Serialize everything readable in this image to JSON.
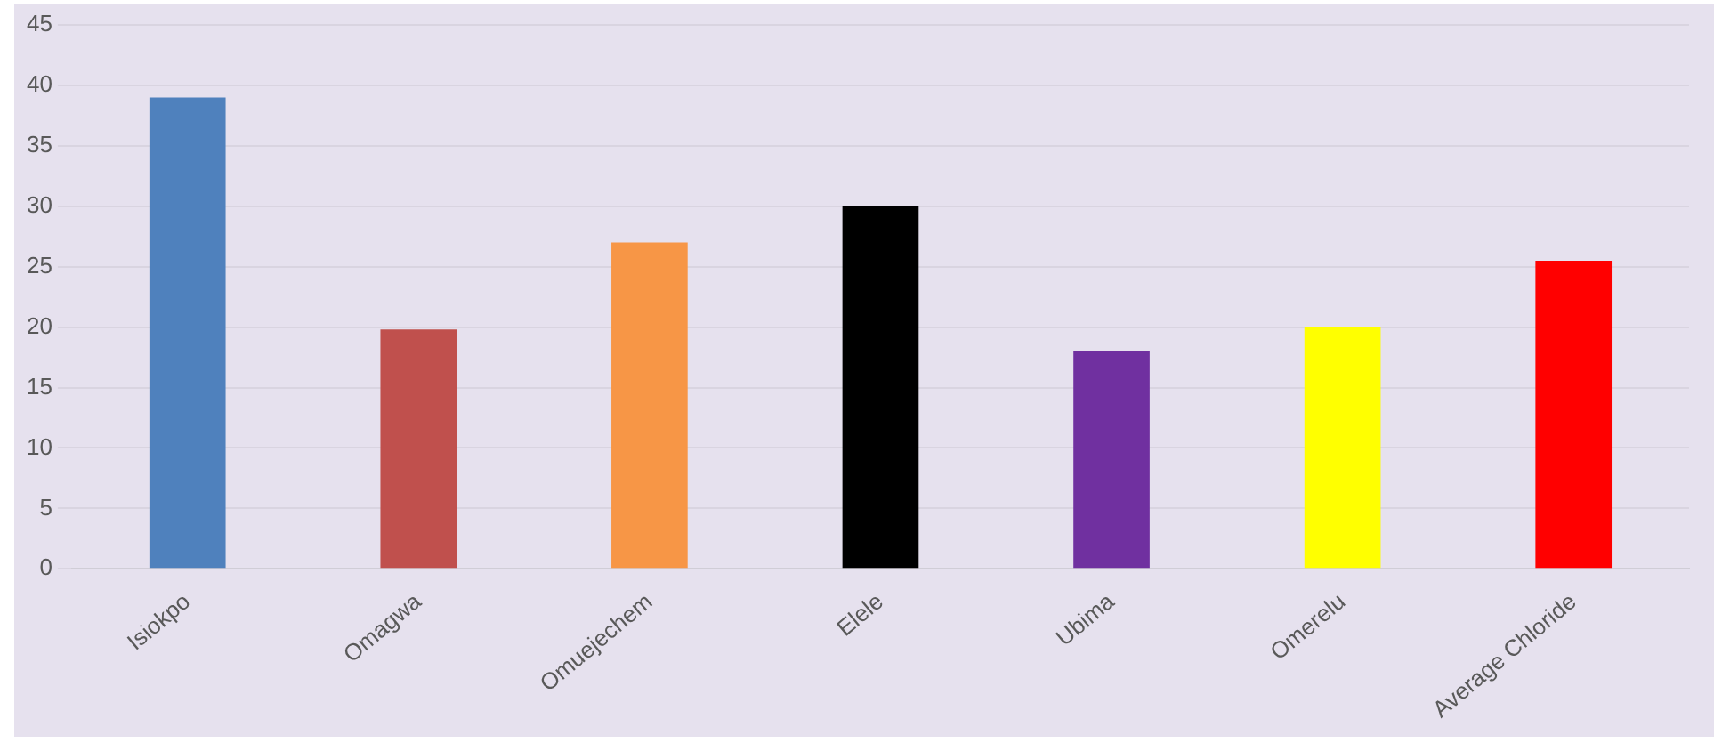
{
  "chart_data": {
    "type": "bar",
    "categories": [
      "Isiokpo",
      "Omagwa",
      "Omuejechem",
      "Elele",
      "Ubima",
      "Omerelu",
      "Average Chloride"
    ],
    "values": [
      39,
      19.8,
      27,
      30,
      18,
      20,
      25.5
    ],
    "colors": [
      "#4f81bd",
      "#c0504d",
      "#f79646",
      "#000000",
      "#7030a0",
      "#ffff00",
      "#ff0000"
    ],
    "ylim": [
      0,
      45
    ],
    "yticks": [
      0,
      5,
      10,
      15,
      20,
      25,
      30,
      35,
      40,
      45
    ],
    "grid": "y",
    "legend": false
  }
}
